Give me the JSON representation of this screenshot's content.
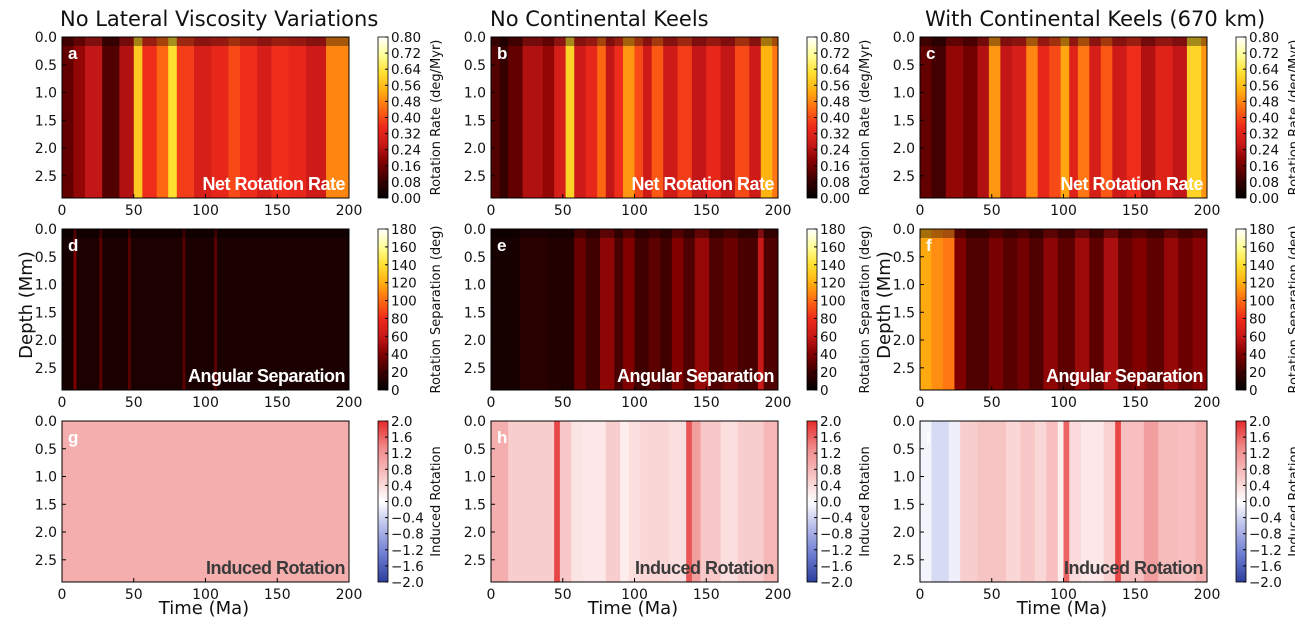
{
  "columns": [
    {
      "title": "No Lateral Viscosity Variations"
    },
    {
      "title": "No Continental Keels"
    },
    {
      "title": "With Continental Keels (670 km)"
    }
  ],
  "axes": {
    "x_label": "Time (Ma)",
    "y_label": "Depth (Mm)",
    "x_ticks": [
      "0",
      "50",
      "100",
      "150",
      "200"
    ],
    "y_ticks": [
      "0.0",
      "0.5",
      "1.0",
      "1.5",
      "2.0",
      "2.5"
    ]
  },
  "rows": [
    {
      "name": "Net Rotation Rate",
      "cbar_label": "Rotation Rate (deg/Myr)",
      "cbar_ticks": [
        "0.80",
        "0.72",
        "0.64",
        "0.56",
        "0.48",
        "0.40",
        "0.32",
        "0.24",
        "0.16",
        "0.08",
        "0.00"
      ],
      "colormap": "hot"
    },
    {
      "name": "Angular Separation",
      "cbar_label": "Rotation Separation (deg)",
      "cbar_ticks": [
        "180",
        "160",
        "140",
        "120",
        "100",
        "80",
        "60",
        "40",
        "20",
        "0"
      ],
      "colormap": "hot"
    },
    {
      "name": "Induced Rotation",
      "cbar_label": "Induced Rotation",
      "cbar_ticks": [
        "2.0",
        "1.6",
        "1.2",
        "0.8",
        "0.4",
        "0.0",
        "−0.4",
        "−0.8",
        "−1.2",
        "−1.6",
        "−2.0"
      ],
      "colormap": "bwr"
    }
  ],
  "colormaps": {
    "hot": [
      "#000000",
      "#3a0000",
      "#800000",
      "#c81818",
      "#ee2a1a",
      "#ff6a12",
      "#ffb010",
      "#ffe030",
      "#ffff99",
      "#ffffff"
    ],
    "bwr": [
      "#2c3e9c",
      "#6b7bd0",
      "#b3b9e8",
      "#ffffff",
      "#f7c2c2",
      "#f08a8a",
      "#e52a2a"
    ]
  },
  "chart_data": [
    {
      "type": "heatmap",
      "panel": "a",
      "column": "No Lateral Viscosity Variations",
      "quantity": "Net Rotation Rate",
      "x_range": [
        0,
        200
      ],
      "y_range": [
        0,
        2.9
      ],
      "value_range": [
        0,
        0.8
      ],
      "y_inverted": true,
      "time_bands": [
        [
          0,
          8,
          0.14
        ],
        [
          8,
          16,
          0.2
        ],
        [
          16,
          28,
          0.26
        ],
        [
          28,
          40,
          0.12
        ],
        [
          40,
          50,
          0.24
        ],
        [
          50,
          56,
          0.58
        ],
        [
          56,
          66,
          0.36
        ],
        [
          66,
          74,
          0.44
        ],
        [
          74,
          80,
          0.62
        ],
        [
          80,
          92,
          0.38
        ],
        [
          92,
          104,
          0.3
        ],
        [
          104,
          116,
          0.34
        ],
        [
          116,
          124,
          0.4
        ],
        [
          124,
          136,
          0.36
        ],
        [
          136,
          146,
          0.3
        ],
        [
          146,
          158,
          0.36
        ],
        [
          158,
          170,
          0.34
        ],
        [
          170,
          184,
          0.28
        ],
        [
          184,
          200,
          0.48
        ]
      ],
      "overlay_label": "Net Rotation Rate"
    },
    {
      "type": "heatmap",
      "panel": "b",
      "column": "No Continental Keels",
      "quantity": "Net Rotation Rate",
      "x_range": [
        0,
        200
      ],
      "y_range": [
        0,
        2.9
      ],
      "value_range": [
        0,
        0.8
      ],
      "y_inverted": true,
      "time_bands": [
        [
          0,
          6,
          0.12
        ],
        [
          6,
          12,
          0.08
        ],
        [
          12,
          22,
          0.14
        ],
        [
          22,
          36,
          0.24
        ],
        [
          36,
          44,
          0.2
        ],
        [
          44,
          52,
          0.3
        ],
        [
          52,
          58,
          0.6
        ],
        [
          58,
          66,
          0.28
        ],
        [
          66,
          74,
          0.34
        ],
        [
          74,
          80,
          0.44
        ],
        [
          80,
          86,
          0.26
        ],
        [
          86,
          92,
          0.36
        ],
        [
          92,
          100,
          0.5
        ],
        [
          100,
          106,
          0.4
        ],
        [
          106,
          112,
          0.28
        ],
        [
          112,
          120,
          0.42
        ],
        [
          120,
          130,
          0.28
        ],
        [
          130,
          140,
          0.38
        ],
        [
          140,
          150,
          0.26
        ],
        [
          150,
          160,
          0.34
        ],
        [
          160,
          170,
          0.26
        ],
        [
          170,
          180,
          0.4
        ],
        [
          180,
          188,
          0.28
        ],
        [
          188,
          196,
          0.54
        ],
        [
          196,
          200,
          0.46
        ]
      ],
      "overlay_label": "Net Rotation Rate"
    },
    {
      "type": "heatmap",
      "panel": "c",
      "column": "With Continental Keels (670 km)",
      "quantity": "Net Rotation Rate",
      "x_range": [
        0,
        200
      ],
      "y_range": [
        0,
        2.9
      ],
      "value_range": [
        0,
        0.8
      ],
      "y_inverted": true,
      "time_bands": [
        [
          0,
          8,
          0.14
        ],
        [
          8,
          18,
          0.1
        ],
        [
          18,
          30,
          0.2
        ],
        [
          30,
          40,
          0.16
        ],
        [
          40,
          48,
          0.24
        ],
        [
          48,
          56,
          0.5
        ],
        [
          56,
          64,
          0.26
        ],
        [
          64,
          74,
          0.3
        ],
        [
          74,
          82,
          0.48
        ],
        [
          82,
          90,
          0.34
        ],
        [
          90,
          98,
          0.4
        ],
        [
          98,
          104,
          0.52
        ],
        [
          104,
          110,
          0.32
        ],
        [
          110,
          118,
          0.46
        ],
        [
          118,
          126,
          0.3
        ],
        [
          126,
          134,
          0.42
        ],
        [
          134,
          144,
          0.28
        ],
        [
          144,
          154,
          0.36
        ],
        [
          154,
          164,
          0.24
        ],
        [
          164,
          176,
          0.32
        ],
        [
          176,
          186,
          0.26
        ],
        [
          186,
          196,
          0.6
        ],
        [
          196,
          200,
          0.5
        ]
      ],
      "overlay_label": "Net Rotation Rate"
    },
    {
      "type": "heatmap",
      "panel": "d",
      "column": "No Lateral Viscosity Variations",
      "quantity": "Angular Separation",
      "x_range": [
        0,
        200
      ],
      "y_range": [
        0,
        2.9
      ],
      "value_range": [
        0,
        180
      ],
      "y_inverted": true,
      "time_bands": [
        [
          0,
          8,
          8
        ],
        [
          8,
          10,
          40
        ],
        [
          10,
          26,
          10
        ],
        [
          26,
          28,
          30
        ],
        [
          28,
          46,
          9
        ],
        [
          46,
          48,
          28
        ],
        [
          48,
          84,
          10
        ],
        [
          84,
          86,
          30
        ],
        [
          86,
          106,
          9
        ],
        [
          106,
          108,
          30
        ],
        [
          108,
          200,
          9
        ]
      ],
      "overlay_label": "Angular Separation"
    },
    {
      "type": "heatmap",
      "panel": "e",
      "column": "No Continental Keels",
      "quantity": "Angular Separation",
      "x_range": [
        0,
        200
      ],
      "y_range": [
        0,
        2.9
      ],
      "value_range": [
        0,
        180
      ],
      "y_inverted": true,
      "time_bands": [
        [
          0,
          20,
          8
        ],
        [
          20,
          40,
          14
        ],
        [
          40,
          58,
          12
        ],
        [
          58,
          66,
          34
        ],
        [
          66,
          76,
          22
        ],
        [
          76,
          86,
          44
        ],
        [
          86,
          92,
          24
        ],
        [
          92,
          100,
          40
        ],
        [
          100,
          110,
          22
        ],
        [
          110,
          118,
          30
        ],
        [
          118,
          126,
          22
        ],
        [
          126,
          134,
          40
        ],
        [
          134,
          142,
          26
        ],
        [
          142,
          152,
          46
        ],
        [
          152,
          162,
          26
        ],
        [
          162,
          172,
          34
        ],
        [
          172,
          186,
          24
        ],
        [
          186,
          190,
          60
        ],
        [
          190,
          200,
          26
        ]
      ],
      "overlay_label": "Angular Separation"
    },
    {
      "type": "heatmap",
      "panel": "f",
      "column": "With Continental Keels (670 km)",
      "quantity": "Angular Separation",
      "x_range": [
        0,
        200
      ],
      "y_range": [
        0,
        2.9
      ],
      "value_range": [
        0,
        180
      ],
      "y_inverted": true,
      "time_bands": [
        [
          0,
          8,
          118
        ],
        [
          8,
          16,
          110
        ],
        [
          16,
          24,
          104
        ],
        [
          24,
          32,
          40
        ],
        [
          32,
          48,
          26
        ],
        [
          48,
          58,
          38
        ],
        [
          58,
          68,
          28
        ],
        [
          68,
          76,
          36
        ],
        [
          76,
          86,
          26
        ],
        [
          86,
          96,
          44
        ],
        [
          96,
          108,
          30
        ],
        [
          108,
          118,
          48
        ],
        [
          118,
          128,
          30
        ],
        [
          128,
          138,
          52
        ],
        [
          138,
          148,
          32
        ],
        [
          148,
          158,
          40
        ],
        [
          158,
          170,
          30
        ],
        [
          170,
          180,
          46
        ],
        [
          180,
          190,
          34
        ],
        [
          190,
          200,
          42
        ]
      ],
      "overlay_label": "Angular Separation"
    },
    {
      "type": "heatmap",
      "panel": "g",
      "column": "No Lateral Viscosity Variations",
      "quantity": "Induced Rotation",
      "x_range": [
        0,
        200
      ],
      "y_range": [
        0,
        2.9
      ],
      "value_range": [
        -2,
        2
      ],
      "y_inverted": true,
      "time_bands": [
        [
          0,
          200,
          0.9
        ]
      ],
      "overlay_label": "Induced Rotation"
    },
    {
      "type": "heatmap",
      "panel": "h",
      "column": "No Continental Keels",
      "quantity": "Induced Rotation",
      "x_range": [
        0,
        200
      ],
      "y_range": [
        0,
        2.9
      ],
      "value_range": [
        -2,
        2
      ],
      "y_inverted": true,
      "time_bands": [
        [
          0,
          12,
          0.9
        ],
        [
          12,
          44,
          0.55
        ],
        [
          44,
          48,
          1.8
        ],
        [
          48,
          56,
          0.6
        ],
        [
          56,
          64,
          0.3
        ],
        [
          64,
          80,
          0.25
        ],
        [
          80,
          90,
          0.55
        ],
        [
          90,
          96,
          0.2
        ],
        [
          96,
          104,
          0.35
        ],
        [
          104,
          124,
          0.45
        ],
        [
          124,
          136,
          0.35
        ],
        [
          136,
          140,
          1.7
        ],
        [
          140,
          146,
          1.1
        ],
        [
          146,
          160,
          0.6
        ],
        [
          160,
          172,
          0.35
        ],
        [
          172,
          190,
          0.55
        ],
        [
          190,
          200,
          0.8
        ]
      ],
      "overlay_label": "Induced Rotation"
    },
    {
      "type": "heatmap",
      "panel": "i",
      "column": "With Continental Keels (670 km)",
      "quantity": "Induced Rotation",
      "x_range": [
        0,
        200
      ],
      "y_range": [
        0,
        2.9
      ],
      "value_range": [
        -2,
        2
      ],
      "y_inverted": true,
      "time_bands": [
        [
          0,
          8,
          -0.1
        ],
        [
          8,
          20,
          -0.35
        ],
        [
          20,
          28,
          -0.15
        ],
        [
          28,
          40,
          0.55
        ],
        [
          40,
          60,
          0.65
        ],
        [
          60,
          70,
          0.45
        ],
        [
          70,
          80,
          0.6
        ],
        [
          80,
          88,
          0.45
        ],
        [
          88,
          96,
          0.7
        ],
        [
          96,
          100,
          0.2
        ],
        [
          100,
          104,
          1.6
        ],
        [
          104,
          112,
          0.4
        ],
        [
          112,
          128,
          0.25
        ],
        [
          128,
          136,
          0.5
        ],
        [
          136,
          140,
          1.8
        ],
        [
          140,
          156,
          0.7
        ],
        [
          156,
          166,
          1.1
        ],
        [
          166,
          180,
          0.75
        ],
        [
          180,
          192,
          0.7
        ],
        [
          192,
          200,
          0.9
        ]
      ],
      "overlay_label": "Induced Rotation"
    }
  ]
}
